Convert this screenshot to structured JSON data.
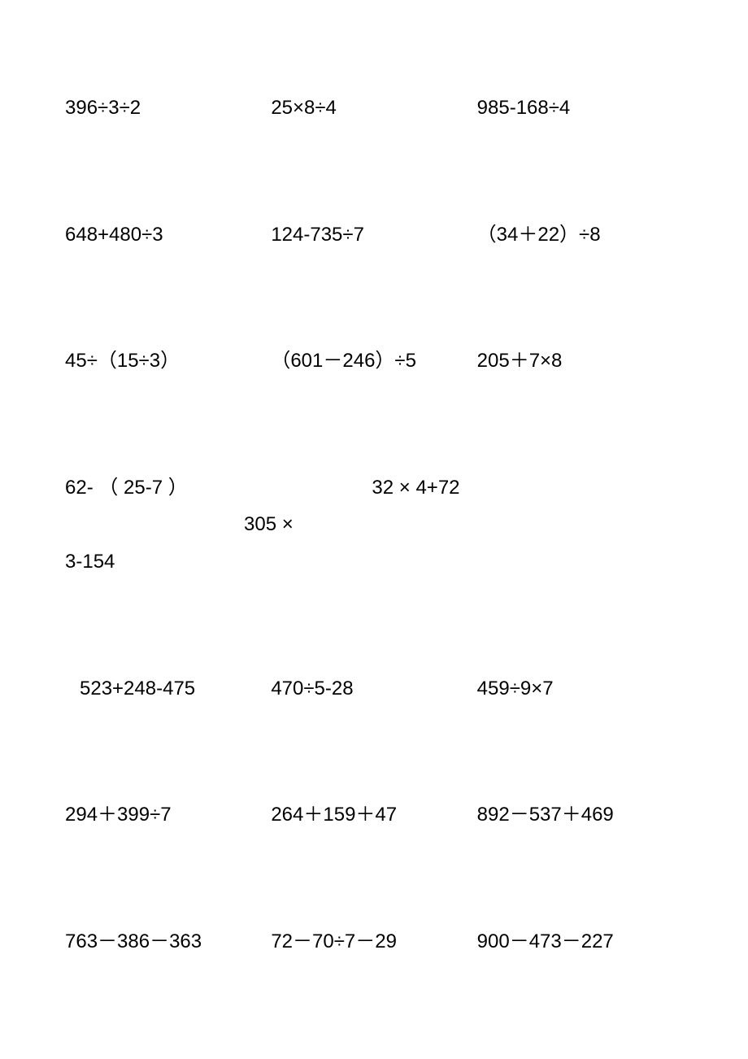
{
  "text_color": "#000000",
  "background_color": "#ffffff",
  "font_size_pt": 18,
  "rowsA": [
    [
      "396÷3÷2",
      "25×8÷4",
      "985-168÷4"
    ],
    [
      "648+480÷3",
      "124-735÷7",
      "（34＋22）÷8"
    ],
    [
      "45÷（15÷3）",
      "（601－246）÷5",
      "205＋7×8"
    ]
  ],
  "wrap": {
    "line1_seg1": "62- （ 25-7 ）",
    "line1_seg2": "32 × 4+72",
    "line1_seg3": "305 ×",
    "line2": "3-154"
  },
  "rowsB": [
    [
      "523+248-475",
      "470÷5-28",
      "459÷9×7"
    ],
    [
      "294＋399÷7",
      "264＋159＋47",
      "892－537＋469"
    ],
    [
      "763－386－363",
      "72－70÷7－29",
      "900－473－227"
    ]
  ]
}
